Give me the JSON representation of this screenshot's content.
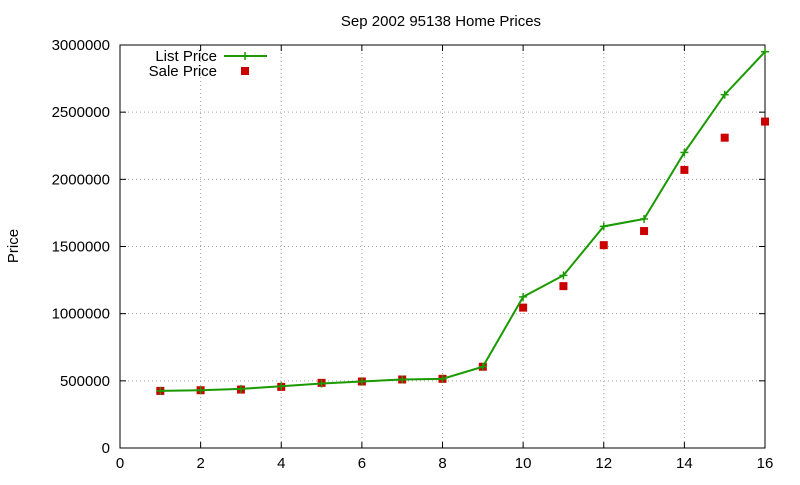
{
  "chart_data": {
    "type": "line",
    "title": "Sep 2002 95138 Home Prices",
    "xlabel": "",
    "ylabel": "Price",
    "xlim": [
      0,
      16
    ],
    "ylim": [
      0,
      3000000
    ],
    "xticks": [
      0,
      2,
      4,
      6,
      8,
      10,
      12,
      14,
      16
    ],
    "yticks": [
      0,
      500000,
      1000000,
      1500000,
      2000000,
      2500000,
      3000000
    ],
    "grid": true,
    "legend_position": "top-left",
    "x": [
      1,
      2,
      3,
      4,
      5,
      6,
      7,
      8,
      9,
      10,
      11,
      12,
      13,
      14,
      15,
      16
    ],
    "series": [
      {
        "name": "List Price",
        "style": "line-with-plus-markers",
        "color": "#1a9a00",
        "values": [
          425000,
          430000,
          440000,
          460000,
          480000,
          495000,
          510000,
          515000,
          605000,
          1125000,
          1285000,
          1650000,
          1705000,
          2200000,
          2630000,
          2950000
        ]
      },
      {
        "name": "Sale Price",
        "style": "square-markers",
        "color": "#cc0000",
        "values": [
          425000,
          430000,
          435000,
          455000,
          485000,
          495000,
          510000,
          515000,
          605000,
          1045000,
          1205000,
          1510000,
          1615000,
          2070000,
          2310000,
          2430000
        ]
      }
    ]
  }
}
